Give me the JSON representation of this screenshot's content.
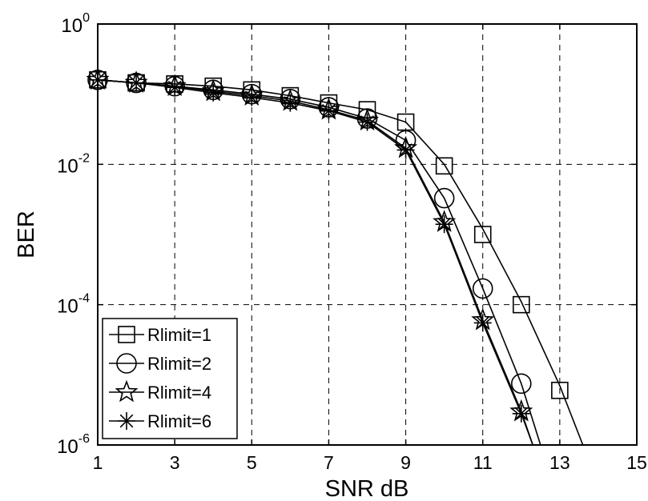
{
  "chart_data": {
    "type": "line",
    "title": "",
    "xlabel": "SNR dB",
    "ylabel": "BER",
    "xlim": [
      1,
      15
    ],
    "ylim": [
      1e-06,
      1
    ],
    "y_scale": "log",
    "grid": true,
    "legend_position": "bottom-left",
    "x_ticks": [
      "1",
      "3",
      "5",
      "7",
      "9",
      "11",
      "13",
      "15"
    ],
    "y_ticks": [
      {
        "base": "10",
        "exp": "0"
      },
      {
        "base": "10",
        "exp": "-2"
      },
      {
        "base": "10",
        "exp": "-4"
      },
      {
        "base": "10",
        "exp": "-6"
      }
    ],
    "series": [
      {
        "name": "Rlimit=1",
        "marker": "square",
        "x": [
          1,
          2,
          3,
          4,
          5,
          6,
          7,
          8,
          9,
          10,
          11,
          12,
          13
        ],
        "y": [
          0.16,
          0.145,
          0.14,
          0.13,
          0.115,
          0.095,
          0.075,
          0.06,
          0.04,
          0.0095,
          0.001,
          0.0001,
          6e-06
        ],
        "line": {
          "x": [
            1,
            2,
            3,
            4,
            5,
            6,
            7,
            8,
            9,
            10,
            11,
            12,
            13,
            13.6
          ],
          "y": [
            0.16,
            0.145,
            0.14,
            0.13,
            0.115,
            0.095,
            0.075,
            0.06,
            0.04,
            0.01,
            0.0012,
            0.00011,
            7e-06,
            1e-06
          ]
        }
      },
      {
        "name": "Rlimit=2",
        "marker": "circle",
        "x": [
          1,
          2,
          3,
          4,
          5,
          6,
          7,
          8,
          9,
          10,
          11,
          12
        ],
        "y": [
          0.16,
          0.145,
          0.13,
          0.115,
          0.1,
          0.085,
          0.065,
          0.045,
          0.022,
          0.0033,
          0.00017,
          7.5e-06
        ],
        "line": {
          "x": [
            1,
            2,
            3,
            4,
            5,
            6,
            7,
            8,
            9,
            10,
            11,
            12,
            12.5
          ],
          "y": [
            0.16,
            0.145,
            0.13,
            0.115,
            0.1,
            0.085,
            0.065,
            0.045,
            0.022,
            0.0033,
            0.00017,
            7.5e-06,
            1e-06
          ]
        }
      },
      {
        "name": "Rlimit=4",
        "marker": "star",
        "x": [
          1,
          2,
          3,
          4,
          5,
          6,
          7,
          8,
          9,
          10,
          11,
          12
        ],
        "y": [
          0.16,
          0.145,
          0.13,
          0.11,
          0.095,
          0.08,
          0.06,
          0.042,
          0.017,
          0.0015,
          6e-05,
          3e-06
        ],
        "line": {
          "x": [
            1,
            2,
            3,
            4,
            5,
            6,
            7,
            8,
            9,
            10,
            11,
            12,
            12.3
          ],
          "y": [
            0.16,
            0.145,
            0.13,
            0.11,
            0.095,
            0.08,
            0.06,
            0.042,
            0.017,
            0.0015,
            6e-05,
            3e-06,
            1e-06
          ]
        }
      },
      {
        "name": "Rlimit=6",
        "marker": "asterisk",
        "x": [
          1,
          2,
          3,
          4,
          5,
          6,
          7,
          8,
          9,
          10,
          11,
          12
        ],
        "y": [
          0.16,
          0.145,
          0.125,
          0.105,
          0.09,
          0.075,
          0.058,
          0.04,
          0.016,
          0.0014,
          5.5e-05,
          2.8e-06
        ],
        "line": {
          "x": [
            1,
            2,
            3,
            4,
            5,
            6,
            7,
            8,
            9,
            10,
            11,
            12,
            12.3
          ],
          "y": [
            0.16,
            0.145,
            0.125,
            0.105,
            0.09,
            0.075,
            0.058,
            0.04,
            0.016,
            0.0014,
            5.5e-05,
            2.8e-06,
            1e-06
          ]
        }
      }
    ]
  }
}
